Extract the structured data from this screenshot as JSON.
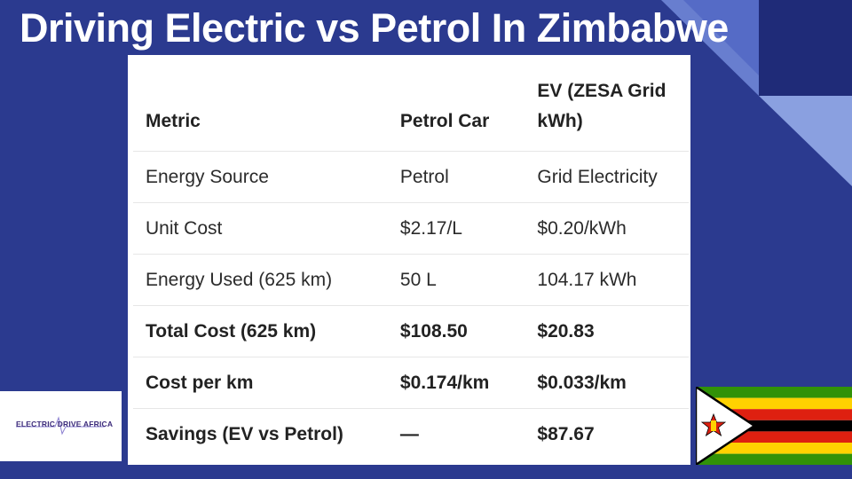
{
  "slide": {
    "title": "Driving Electric vs Petrol In Zimbabwe"
  },
  "table": {
    "headers": [
      "Metric",
      "Petrol Car",
      "EV (ZESA Grid kWh)"
    ],
    "rows": [
      {
        "cells": [
          "Energy Source",
          "Petrol",
          "Grid Electricity"
        ],
        "bold": false
      },
      {
        "cells": [
          "Unit Cost",
          "$2.17/L",
          "$0.20/kWh"
        ],
        "bold": false
      },
      {
        "cells": [
          "Energy Used (625 km)",
          "50 L",
          "104.17 kWh"
        ],
        "bold": false
      },
      {
        "cells": [
          "Total Cost (625 km)",
          "$108.50",
          "$20.83"
        ],
        "bold": true
      },
      {
        "cells": [
          "Cost per km",
          "$0.174/km",
          "$0.033/km"
        ],
        "bold": true
      },
      {
        "cells": [
          "Savings (EV vs Petrol)",
          "—",
          "$87.67"
        ],
        "bold": true
      }
    ]
  },
  "logo": {
    "text": "ELECTRIC DRIVE AFRICA",
    "color": "#3b2a7a"
  },
  "flag": {
    "name": "zimbabwe-flag",
    "colors": [
      "#319208",
      "#ffd200",
      "#de2010",
      "#000000",
      "#ffffff"
    ]
  },
  "colors": {
    "background": "#2b3a8f",
    "accent_dark": "#1f2b78",
    "accent_light": "#6f86d6"
  }
}
